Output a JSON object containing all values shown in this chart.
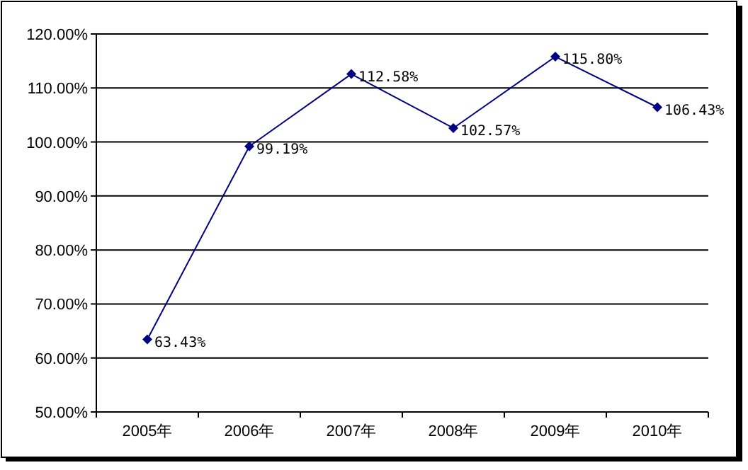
{
  "chart_data": {
    "type": "line",
    "categories": [
      "2005年",
      "2006年",
      "2007年",
      "2008年",
      "2009年",
      "2010年"
    ],
    "series": [
      {
        "color": "#000080",
        "values": [
          63.43,
          99.19,
          112.58,
          102.57,
          115.8,
          106.43
        ],
        "value_labels": [
          "63.43%",
          "99.19%",
          "112.58%",
          "102.57%",
          "115.80%",
          "106.43%"
        ]
      }
    ],
    "ylim": [
      50,
      120
    ],
    "yticks": [
      {
        "value": 50,
        "label": "50.00%"
      },
      {
        "value": 60,
        "label": "60.00%"
      },
      {
        "value": 70,
        "label": "70.00%"
      },
      {
        "value": 80,
        "label": "80.00%"
      },
      {
        "value": 90,
        "label": "90.00%"
      },
      {
        "value": 100,
        "label": "100.00%"
      },
      {
        "value": 110,
        "label": "110.00%"
      },
      {
        "value": 120,
        "label": "120.00%"
      }
    ],
    "grid": "y",
    "marker": "diamond",
    "line_style": "solid"
  }
}
